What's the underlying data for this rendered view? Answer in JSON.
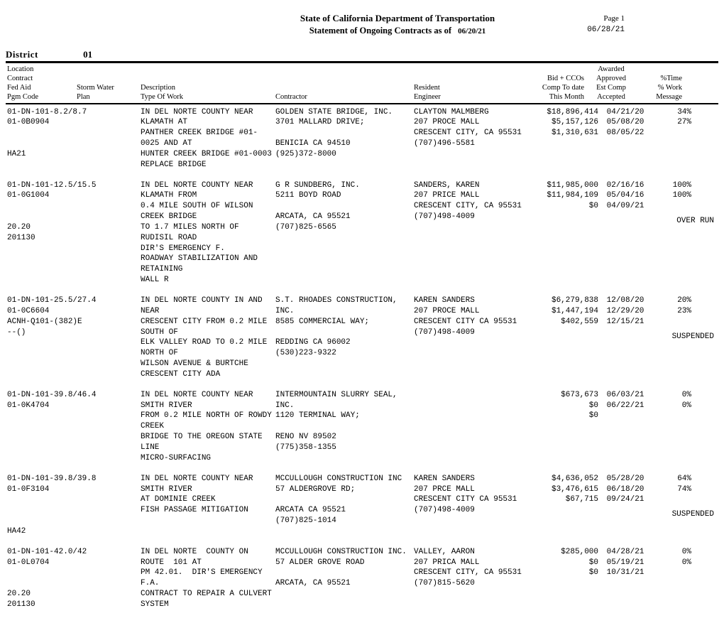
{
  "header": {
    "title": "State of California Department of Transportation",
    "subtitle": "Statement of Ongoing Contracts as of",
    "as_of_date": "06/20/21",
    "page_label": "Page 1",
    "run_date": "06/28/21"
  },
  "district": {
    "label": "District",
    "number": "01"
  },
  "column_headers": {
    "loc": "Location\nContract\nFed Aid\nPgm Code",
    "storm": "\n\nStorm Water\nPlan",
    "desc": "\n\nDescription\nType Of Work",
    "ctr": "\n\n\nContractor",
    "eng": "\n\nResident\nEngineer",
    "bid": "\nBid + CCOs\nComp To date\nThis Month",
    "dates": "Awarded\nApproved\nEst Comp\nAccepted",
    "pct": "\n%Time\n% Work\nMessage"
  },
  "records": [
    {
      "loc": "01-DN-101-8.2/8.7\n01-0B0904\n\n\nHA21",
      "desc": "IN DEL NORTE COUNTY NEAR KLAMATH AT\nPANTHER CREEK BRIDGE #01-0025 AND AT\nHUNTER CREEK BRIDGE #01-0003\nREPLACE BRIDGE",
      "ctr": "GOLDEN STATE BRIDGE, INC.\n3701 MALLARD DRIVE;\n\nBENICIA CA 94510\n(925)372-8000",
      "eng": "CLAYTON MALMBERG\n207 PROCE MALL\nCRESCENT CITY, CA 95531\n(707)496-5581",
      "lines": [
        {
          "amt": "$18,896,414",
          "date": "04/21/20",
          "pct": "34%"
        },
        {
          "amt": "$5,157,126",
          "date": "05/08/20",
          "pct": "27%"
        },
        {
          "amt": "$1,310,631",
          "date": "08/05/22",
          "pct": ""
        }
      ],
      "message": ""
    },
    {
      "loc": "01-DN-101-12.5/15.5\n01-0G1004\n\n\n20.20\n201130",
      "desc": "IN DEL NORTE COUNTY NEAR KLAMATH FROM\n0.4 MILE SOUTH OF WILSON CREEK BRIDGE\nTO 1.7 MILES NORTH OF RUDISIL ROAD\nDIR'S EMERGENCY F.\nROADWAY STABILIZATION AND RETAINING\nWALL R",
      "ctr": "G R SUNDBERG, INC.\n5211 BOYD ROAD\n\nARCATA, CA 95521\n(707)825-6565",
      "eng": "SANDERS, KAREN\n207 PRICE MALL\nCRESCENT CITY, CA 95531\n(707)498-4009",
      "lines": [
        {
          "amt": "$11,985,000",
          "date": "02/16/16",
          "pct": "100%"
        },
        {
          "amt": "$11,984,109",
          "date": "05/04/16",
          "pct": "100%"
        },
        {
          "amt": "$0",
          "date": "04/09/21",
          "pct": ""
        }
      ],
      "message": "OVER RUN"
    },
    {
      "loc": "01-DN-101-25.5/27.4\n01-0C6604\nACNH-Q101-(382)E\n--()",
      "desc": "IN DEL NORTE COUNTY IN AND NEAR\nCRESCENT CITY FROM 0.2 MILE SOUTH OF\nELK VALLEY ROAD TO 0.2 MILE NORTH OF\nWILSON AVENUE & BURTCHE\nCRESCENT CITY ADA",
      "ctr": "S.T. RHOADES CONSTRUCTION,\nINC.\n8585 COMMERCIAL WAY;\n\nREDDING CA 96002\n(530)223-9322",
      "eng": "KAREN SANDERS\n207 PROCE MALL\nCRESCENT CITY CA 95531\n(707)498-4009",
      "lines": [
        {
          "amt": "$6,279,838",
          "date": "12/08/20",
          "pct": "20%"
        },
        {
          "amt": "$1,447,194",
          "date": "12/29/20",
          "pct": "23%"
        },
        {
          "amt": "$402,559",
          "date": "12/15/21",
          "pct": ""
        }
      ],
      "message": "SUSPENDED"
    },
    {
      "loc": "01-DN-101-39.8/46.4\n01-0K4704",
      "desc": "IN DEL NORTE COUNTY NEAR SMITH RIVER\nFROM 0.2 MILE NORTH OF ROWDY CREEK\nBRIDGE TO THE OREGON STATE LINE\nMICRO-SURFACING",
      "ctr": "INTERMOUNTAIN SLURRY SEAL,\nINC.\n1120 TERMINAL WAY;\n\nRENO NV 89502\n(775)358-1355",
      "eng": "",
      "lines": [
        {
          "amt": "$673,673",
          "date": "06/03/21",
          "pct": "0%"
        },
        {
          "amt": "$0",
          "date": "06/22/21",
          "pct": "0%"
        },
        {
          "amt": "$0",
          "date": "",
          "pct": ""
        }
      ],
      "message": ""
    },
    {
      "loc": "01-DN-101-39.8/39.8\n01-0F3104\n\n\n\nHA42",
      "desc": "IN DEL NORTE COUNTY NEAR SMITH RIVER\nAT DOMINIE CREEK\nFISH PASSAGE MITIGATION",
      "ctr": "MCCULLOUGH CONSTRUCTION INC\n57 ALDERGROVE RD;\n\nARCATA CA 95521\n(707)825-1014",
      "eng": "KAREN SANDERS\n207 PRCE MALL\nCRESCENT CITY CA 95531\n(707)498-4009",
      "lines": [
        {
          "amt": "$4,636,052",
          "date": "05/28/20",
          "pct": "64%"
        },
        {
          "amt": "$3,476,615",
          "date": "06/18/20",
          "pct": "74%"
        },
        {
          "amt": "$67,715",
          "date": "09/24/21",
          "pct": ""
        }
      ],
      "message": "SUSPENDED"
    },
    {
      "loc": "01-DN-101-42.0/42\n01-0L0704\n\n\n20.20\n201130",
      "desc": "IN DEL NORTE  COUNTY ON ROUTE  101 AT\nPM 42.01.  DIR'S EMERGENCY F.A.\nCONTRACT TO REPAIR A CULVERT SYSTEM",
      "ctr": "MCCULLOUGH CONSTRUCTION INC.\n57 ALDER GROVE ROAD\n\nARCATA, CA 95521",
      "eng": "VALLEY, AARON\n207 PRICA MALL\nCRESCENT CITY, CA 95531\n(707)815-5620",
      "lines": [
        {
          "amt": "$285,000",
          "date": "04/28/21",
          "pct": "0%"
        },
        {
          "amt": "$0",
          "date": "05/19/21",
          "pct": "0%"
        },
        {
          "amt": "$0",
          "date": "10/31/21",
          "pct": ""
        }
      ],
      "message": ""
    }
  ]
}
